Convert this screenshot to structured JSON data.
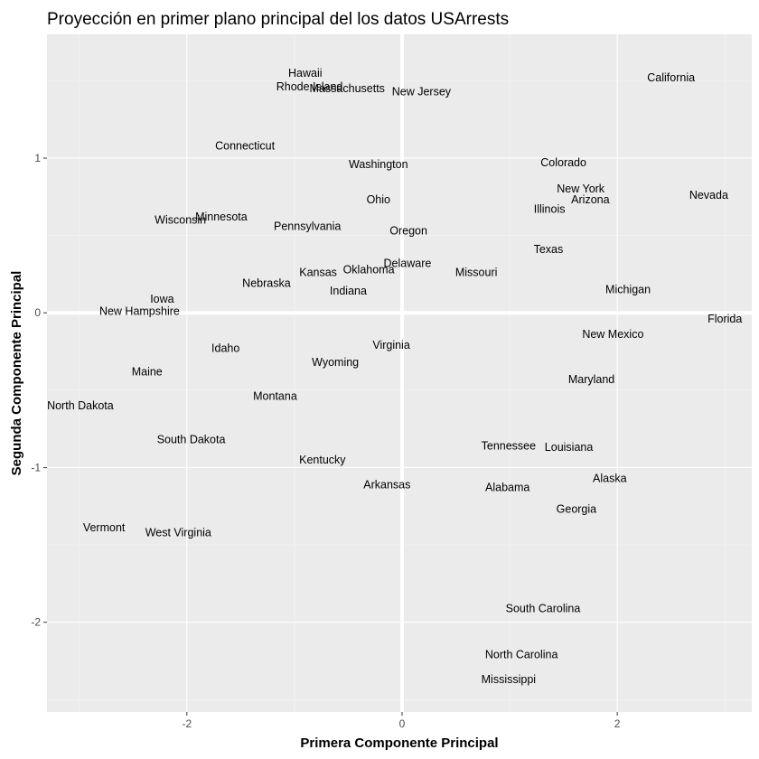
{
  "chart_data": {
    "type": "scatter",
    "title": "Proyección en primer plano principal del los datos USArrests",
    "xlabel": "Primera Componente Principal",
    "ylabel": "Segunda Componente Principal",
    "xlim": [
      -3.3,
      3.25
    ],
    "ylim": [
      -2.58,
      1.8
    ],
    "xticks": [
      -2,
      0,
      2
    ],
    "yticks": [
      -2,
      -1,
      0,
      1
    ],
    "xtick_labels": [
      "-2",
      "0",
      "2"
    ],
    "ytick_labels": [
      "-2",
      "-1",
      "0",
      "1"
    ],
    "reference_lines": {
      "x": 0,
      "y": 0
    },
    "grid": true,
    "point_style": "text-labels",
    "points": [
      {
        "label": "Hawaii",
        "x": -0.9,
        "y": 1.55
      },
      {
        "label": "Rhode Island",
        "x": -0.86,
        "y": 1.46
      },
      {
        "label": "Massachusetts",
        "x": -0.51,
        "y": 1.45
      },
      {
        "label": "New Jersey",
        "x": 0.18,
        "y": 1.43
      },
      {
        "label": "California",
        "x": 2.5,
        "y": 1.52
      },
      {
        "label": "Connecticut",
        "x": -1.46,
        "y": 1.08
      },
      {
        "label": "Washington",
        "x": -0.22,
        "y": 0.96
      },
      {
        "label": "Colorado",
        "x": 1.5,
        "y": 0.97
      },
      {
        "label": "New York",
        "x": 1.66,
        "y": 0.8
      },
      {
        "label": "Nevada",
        "x": 2.85,
        "y": 0.76
      },
      {
        "label": "Arizona",
        "x": 1.75,
        "y": 0.73
      },
      {
        "label": "Ohio",
        "x": -0.22,
        "y": 0.73
      },
      {
        "label": "Illinois",
        "x": 1.37,
        "y": 0.67
      },
      {
        "label": "Minnesota",
        "x": -1.68,
        "y": 0.62
      },
      {
        "label": "Wisconsin",
        "x": -2.06,
        "y": 0.6
      },
      {
        "label": "Pennsylvania",
        "x": -0.88,
        "y": 0.56
      },
      {
        "label": "Oregon",
        "x": 0.06,
        "y": 0.53
      },
      {
        "label": "Texas",
        "x": 1.36,
        "y": 0.41
      },
      {
        "label": "Delaware",
        "x": 0.05,
        "y": 0.32
      },
      {
        "label": "Oklahoma",
        "x": -0.31,
        "y": 0.28
      },
      {
        "label": "Kansas",
        "x": -0.78,
        "y": 0.26
      },
      {
        "label": "Missouri",
        "x": 0.69,
        "y": 0.26
      },
      {
        "label": "Nebraska",
        "x": -1.26,
        "y": 0.19
      },
      {
        "label": "Indiana",
        "x": -0.5,
        "y": 0.14
      },
      {
        "label": "Michigan",
        "x": 2.1,
        "y": 0.15
      },
      {
        "label": "Iowa",
        "x": -2.23,
        "y": 0.09
      },
      {
        "label": "New Hampshire",
        "x": -2.44,
        "y": 0.01
      },
      {
        "label": "Florida",
        "x": 3.0,
        "y": -0.04
      },
      {
        "label": "New Mexico",
        "x": 1.96,
        "y": -0.14
      },
      {
        "label": "Virginia",
        "x": -0.1,
        "y": -0.21
      },
      {
        "label": "Idaho",
        "x": -1.64,
        "y": -0.23
      },
      {
        "label": "Wyoming",
        "x": -0.62,
        "y": -0.32
      },
      {
        "label": "Maine",
        "x": -2.37,
        "y": -0.38
      },
      {
        "label": "Maryland",
        "x": 1.76,
        "y": -0.43
      },
      {
        "label": "Montana",
        "x": -1.18,
        "y": -0.54
      },
      {
        "label": "North Dakota",
        "x": -2.99,
        "y": -0.6
      },
      {
        "label": "South Dakota",
        "x": -1.96,
        "y": -0.82
      },
      {
        "label": "Tennessee",
        "x": 0.99,
        "y": -0.86
      },
      {
        "label": "Louisiana",
        "x": 1.55,
        "y": -0.87
      },
      {
        "label": "Kentucky",
        "x": -0.74,
        "y": -0.95
      },
      {
        "label": "Alaska",
        "x": 1.93,
        "y": -1.07
      },
      {
        "label": "Arkansas",
        "x": -0.14,
        "y": -1.11
      },
      {
        "label": "Alabama",
        "x": 0.98,
        "y": -1.13
      },
      {
        "label": "Georgia",
        "x": 1.62,
        "y": -1.27
      },
      {
        "label": "Vermont",
        "x": -2.77,
        "y": -1.39
      },
      {
        "label": "West Virginia",
        "x": -2.08,
        "y": -1.42
      },
      {
        "label": "South Carolina",
        "x": 1.31,
        "y": -1.91
      },
      {
        "label": "North Carolina",
        "x": 1.11,
        "y": -2.21
      },
      {
        "label": "Mississippi",
        "x": 0.99,
        "y": -2.37
      }
    ],
    "colors": {
      "panel": "#ebebeb",
      "grid_major": "#ffffff",
      "grid_minor": "#f5f5f5",
      "reference_line": "#ffffff",
      "text": "#000000",
      "tick_text": "#4d4d4d",
      "tick_mark": "#333333"
    }
  }
}
